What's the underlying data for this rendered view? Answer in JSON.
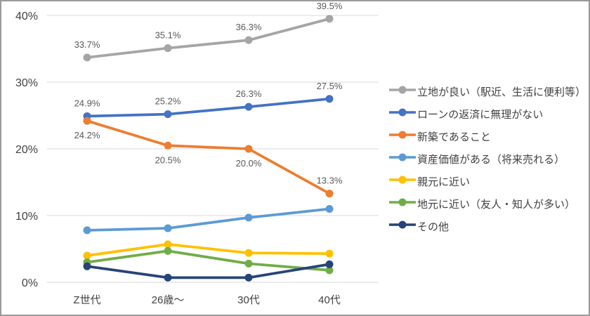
{
  "chart_data": {
    "type": "line",
    "categories": [
      "Z世代",
      "26歳～",
      "30代",
      "40代"
    ],
    "y_axis": {
      "tick_labels": [
        "0%",
        "10%",
        "20%",
        "30%",
        "40%"
      ],
      "tick_values": [
        0,
        10,
        20,
        30,
        40
      ],
      "min": 0,
      "max": 40,
      "grid": true
    },
    "series": [
      {
        "name": "立地が良い（駅近、生活に便利等）",
        "color": "#A5A5A5",
        "values": [
          33.7,
          35.1,
          36.3,
          39.5
        ],
        "data_labels": [
          "33.7%",
          "35.1%",
          "36.3%",
          "39.5%"
        ],
        "label_positions": [
          "above",
          "above",
          "above",
          "above"
        ]
      },
      {
        "name": "ローンの返済に無理がない",
        "color": "#4472C4",
        "values": [
          24.9,
          25.2,
          26.3,
          27.5
        ],
        "data_labels": [
          "24.9%",
          "25.2%",
          "26.3%",
          "27.5%"
        ],
        "label_positions": [
          "above",
          "above",
          "above",
          "above"
        ]
      },
      {
        "name": "新築であること",
        "color": "#ED7D31",
        "values": [
          24.2,
          20.5,
          20.0,
          13.3
        ],
        "data_labels": [
          "24.2%",
          "20.5%",
          "20.0%",
          "13.3%"
        ],
        "label_positions": [
          "below",
          "below",
          "below",
          "above"
        ]
      },
      {
        "name": "資産価値がある（将来売れる）",
        "color": "#5B9BD5",
        "values": [
          7.8,
          8.1,
          9.7,
          11.0
        ],
        "data_labels": null,
        "label_positions": null
      },
      {
        "name": "親元に近い",
        "color": "#FFC000",
        "values": [
          4.0,
          5.7,
          4.4,
          4.3
        ],
        "data_labels": null,
        "label_positions": null
      },
      {
        "name": "地元に近い（友人・知人が多い）",
        "color": "#70AD47",
        "values": [
          3.0,
          4.7,
          2.8,
          1.8
        ],
        "data_labels": null,
        "label_positions": null
      },
      {
        "name": "その他",
        "color": "#264478",
        "values": [
          2.4,
          0.7,
          0.7,
          2.7
        ],
        "data_labels": null,
        "label_positions": null
      }
    ],
    "legend_position": "right",
    "style": {
      "grid_color": "#D9D9D9",
      "axis_text_color": "#404040",
      "data_label_color": "#595959",
      "frame_border_color": "#9A9A9A"
    }
  }
}
